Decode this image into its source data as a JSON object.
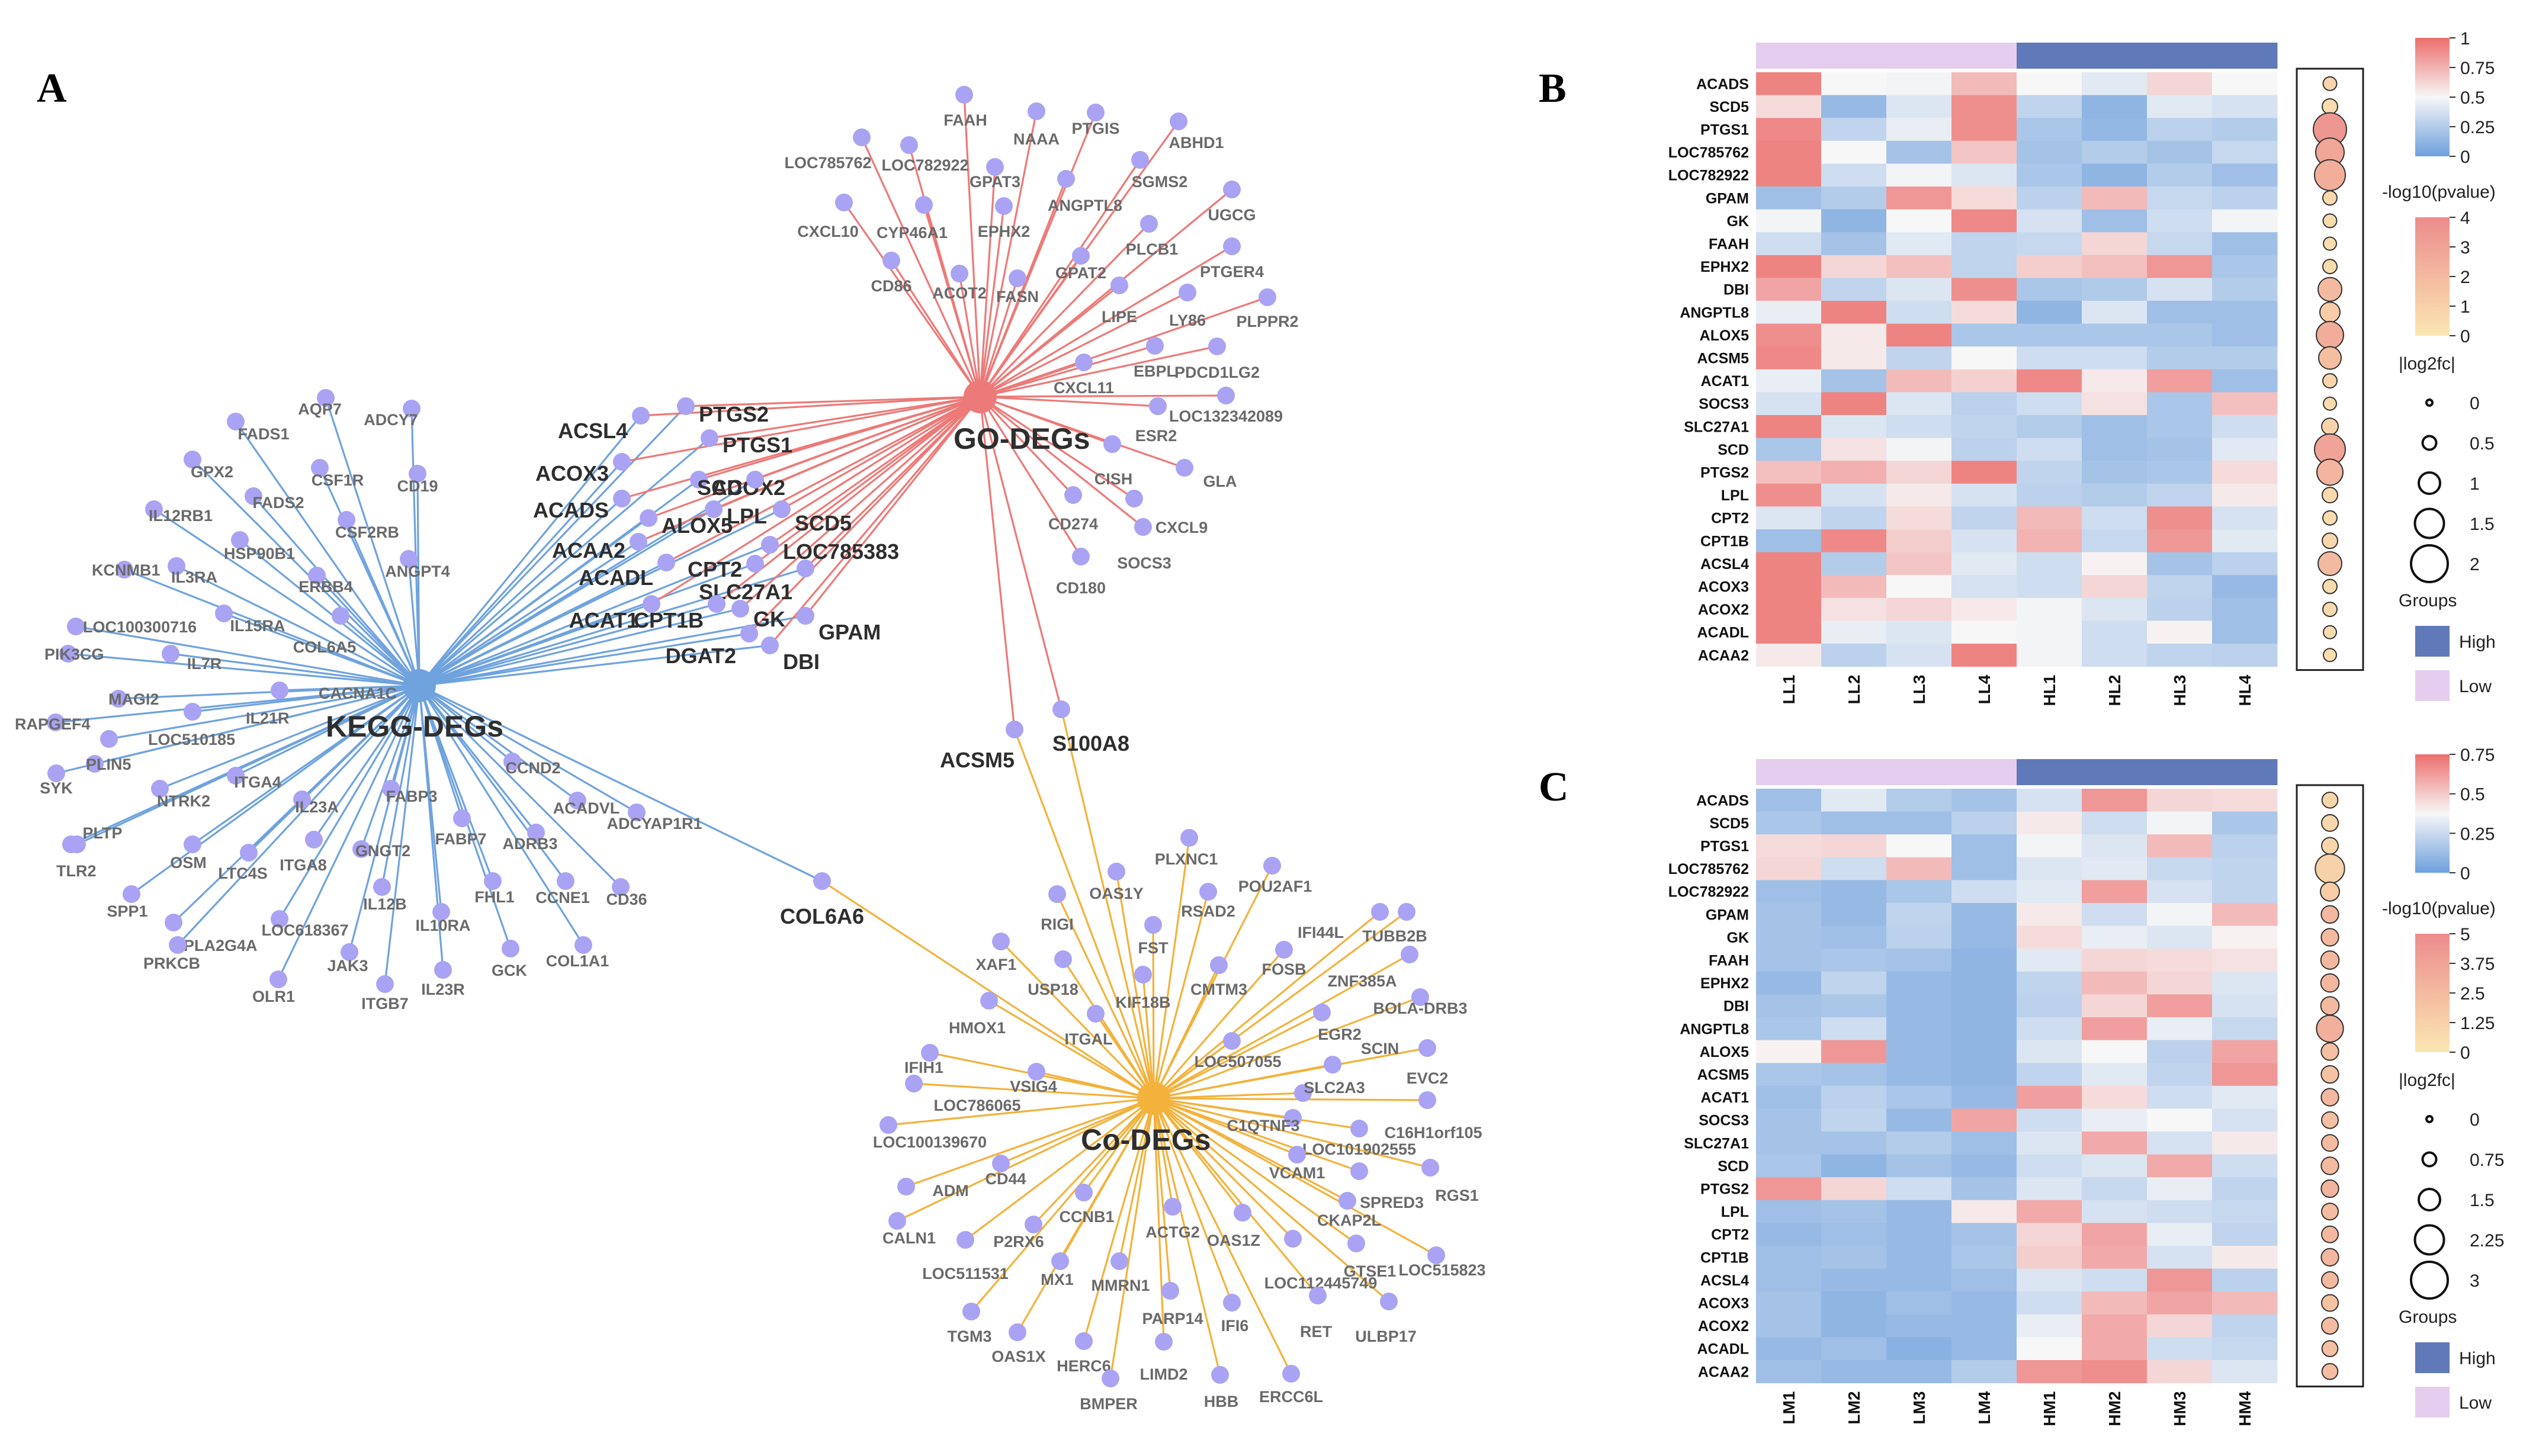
{
  "panels": {
    "a": "A",
    "b": "B",
    "c": "C"
  },
  "colors": {
    "kegg": "#6fa3de",
    "go": "#ec7a78",
    "co": "#f3b23c",
    "node": "#aaa3f3",
    "high": "#6079b8",
    "low": "#e4cdef",
    "heat_low": "#6ea0dd",
    "heat_mid": "#f7f7f7",
    "heat_high": "#ec6e6c",
    "pv_low": "#fbe7b3",
    "pv_high": "#ec8c8c"
  },
  "network": {
    "hubs": {
      "kegg": "KEGG-DEGs",
      "go": "GO-DEGs",
      "co": "Co-DEGs"
    },
    "kegg_genes": [
      "AQP7",
      "ADCY7",
      "FADS1",
      "GPX2",
      "CSF1R",
      "CD19",
      "FADS2",
      "IL12RB1",
      "CSF2RB",
      "HSP90B1",
      "KCNMB1",
      "ANGPT4",
      "IL3RA",
      "ERBB4",
      "LOC100300716",
      "IL15RA",
      "COL6A5",
      "PIK3CG",
      "IL7R",
      "MAGI2",
      "CACNA1C",
      "RAPGEF4",
      "IL21R",
      "LOC510185",
      "PLIN5",
      "SYK",
      "NTRK2",
      "ITGA4",
      "PLTP",
      "IL23A",
      "FABP3",
      "TLR2",
      "OSM",
      "LTC4S",
      "ITGA8",
      "GNGT2",
      "FABP7",
      "SPP1",
      "PLA2G4A",
      "IL12B",
      "PRKCB",
      "LOC618367",
      "FHL1",
      "IL10RA",
      "JAK3",
      "OLR1",
      "ITGB7",
      "IL23R",
      "GCK",
      "CCND2",
      "ACADVL",
      "ADCYAP1R1",
      "ADRB3",
      "CCNE1",
      "CD36",
      "COL1A1"
    ],
    "go_genes": [
      "FAAH",
      "NAAA",
      "PTGIS",
      "ABHD1",
      "LOC785762",
      "LOC782922",
      "GPAT3",
      "SGMS2",
      "ANGPTL8",
      "UGCG",
      "CXCL10",
      "CYP46A1",
      "EPHX2",
      "PLCB1",
      "CD86",
      "ACOT2",
      "FASN",
      "GPAT2",
      "PTGER4",
      "LIPE",
      "LY86",
      "PLPPR2",
      "EBPL",
      "PDCD1LG2",
      "CXCL11",
      "LOC132342089",
      "ESR2",
      "CISH",
      "GLA",
      "CD274",
      "CXCL9",
      "SOCS3",
      "CD180"
    ],
    "co_genes": [
      "PLXNC1",
      "OAS1Y",
      "POU2AF1",
      "RIGI",
      "RSAD2",
      "IFI44L",
      "FST",
      "TUBB2B",
      "XAF1",
      "USP18",
      "CMTM3",
      "FOSB",
      "ZNF385A",
      "KIF18B",
      "HMOX1",
      "ITGAL",
      "EGR2",
      "BOLA-DRB3",
      "LOC507055",
      "SCIN",
      "IFIH1",
      "VSIG4",
      "SLC2A3",
      "EVC2",
      "LOC786065",
      "C1QTNF3",
      "C16H1orf105",
      "LOC100139670",
      "LOC101902555",
      "RGS1",
      "CD44",
      "VCAM1",
      "SPRED3",
      "ADM",
      "CALN1",
      "CCNB1",
      "ACTG2",
      "CKAP2L",
      "P2RX6",
      "OAS1Z",
      "LOC511531",
      "LOC112445749",
      "GTSE1",
      "LOC515823",
      "MX1",
      "MMRN1",
      "TGM3",
      "PARP14",
      "IFI6",
      "RET",
      "ULBP17",
      "OAS1X",
      "HERC6",
      "LIMD2",
      "BMPER",
      "HBB",
      "ERCC6L"
    ],
    "shared_kegg_go": [
      "PTGS2",
      "ACSL4",
      "PTGS1",
      "ACOX3",
      "ACOX2",
      "SCD",
      "ACADS",
      "LPL",
      "ALOX5",
      "SCD5",
      "ACAA2",
      "LOC785383",
      "ACADL",
      "CPT2",
      "SLC27A1",
      "ACAT1",
      "CPT1B",
      "GK",
      "GPAM",
      "DGAT2",
      "DBI"
    ],
    "shared_go_co": [
      "ACSM5",
      "S100A8"
    ],
    "shared_kegg_co": [
      "COL6A6"
    ]
  },
  "heatmap_b": {
    "genes": [
      "ACADS",
      "SCD5",
      "PTGS1",
      "LOC785762",
      "LOC782922",
      "GPAM",
      "GK",
      "FAAH",
      "EPHX2",
      "DBI",
      "ANGPTL8",
      "ALOX5",
      "ACSM5",
      "ACAT1",
      "SOCS3",
      "SLC27A1",
      "SCD",
      "PTGS2",
      "LPL",
      "CPT2",
      "CPT1B",
      "ACSL4",
      "ACOX3",
      "ACOX2",
      "ACADL",
      "ACAA2"
    ],
    "samples": [
      "LL1",
      "LL2",
      "LL3",
      "LL4",
      "HL1",
      "HL2",
      "HL3",
      "HL4"
    ],
    "groups": [
      "low",
      "low",
      "low",
      "low",
      "high",
      "high",
      "high",
      "high"
    ],
    "values": [
      [
        0.92,
        0.5,
        0.48,
        0.72,
        0.5,
        0.42,
        0.62,
        0.5
      ],
      [
        0.6,
        0.15,
        0.4,
        0.88,
        0.3,
        0.12,
        0.42,
        0.38
      ],
      [
        0.9,
        0.3,
        0.45,
        0.88,
        0.22,
        0.14,
        0.28,
        0.25
      ],
      [
        0.92,
        0.5,
        0.2,
        0.68,
        0.2,
        0.25,
        0.2,
        0.32
      ],
      [
        0.92,
        0.35,
        0.48,
        0.4,
        0.22,
        0.12,
        0.25,
        0.18
      ],
      [
        0.18,
        0.25,
        0.85,
        0.6,
        0.28,
        0.72,
        0.32,
        0.28
      ],
      [
        0.48,
        0.12,
        0.5,
        0.9,
        0.38,
        0.18,
        0.35,
        0.48
      ],
      [
        0.35,
        0.2,
        0.42,
        0.3,
        0.32,
        0.62,
        0.32,
        0.18
      ],
      [
        0.92,
        0.62,
        0.7,
        0.3,
        0.65,
        0.7,
        0.85,
        0.22
      ],
      [
        0.8,
        0.3,
        0.4,
        0.88,
        0.22,
        0.24,
        0.38,
        0.25
      ],
      [
        0.45,
        0.92,
        0.35,
        0.6,
        0.12,
        0.4,
        0.18,
        0.18
      ],
      [
        0.88,
        0.55,
        0.92,
        0.22,
        0.22,
        0.22,
        0.22,
        0.18
      ],
      [
        0.9,
        0.55,
        0.3,
        0.5,
        0.35,
        0.35,
        0.25,
        0.25
      ],
      [
        0.45,
        0.2,
        0.72,
        0.64,
        0.9,
        0.55,
        0.82,
        0.18
      ],
      [
        0.38,
        0.92,
        0.4,
        0.28,
        0.35,
        0.58,
        0.22,
        0.7
      ],
      [
        0.92,
        0.4,
        0.35,
        0.3,
        0.25,
        0.18,
        0.22,
        0.35
      ],
      [
        0.22,
        0.58,
        0.48,
        0.28,
        0.35,
        0.18,
        0.2,
        0.42
      ],
      [
        0.7,
        0.76,
        0.62,
        0.92,
        0.3,
        0.2,
        0.22,
        0.6
      ],
      [
        0.88,
        0.38,
        0.55,
        0.38,
        0.28,
        0.25,
        0.3,
        0.55
      ],
      [
        0.4,
        0.3,
        0.6,
        0.3,
        0.72,
        0.35,
        0.88,
        0.38
      ],
      [
        0.18,
        0.9,
        0.65,
        0.38,
        0.75,
        0.32,
        0.85,
        0.42
      ],
      [
        0.92,
        0.25,
        0.68,
        0.42,
        0.35,
        0.52,
        0.2,
        0.28
      ],
      [
        0.92,
        0.72,
        0.5,
        0.38,
        0.35,
        0.62,
        0.3,
        0.15
      ],
      [
        0.92,
        0.58,
        0.62,
        0.55,
        0.48,
        0.4,
        0.28,
        0.18
      ],
      [
        0.92,
        0.45,
        0.4,
        0.5,
        0.48,
        0.35,
        0.52,
        0.18
      ],
      [
        0.55,
        0.28,
        0.38,
        0.92,
        0.48,
        0.35,
        0.3,
        0.28
      ]
    ],
    "pvalue": [
      0.8,
      0.5,
      3.5,
      2.8,
      2.5,
      0.6,
      0.5,
      0.4,
      0.5,
      2.0,
      1.2,
      2.6,
      1.8,
      0.8,
      0.5,
      0.9,
      3.0,
      2.2,
      0.6,
      0.5,
      0.7,
      2.0,
      0.5,
      0.6,
      0.5,
      0.4
    ],
    "log2fc": [
      0.35,
      0.5,
      2.0,
      1.6,
      1.8,
      0.4,
      0.35,
      0.3,
      0.4,
      1.2,
      0.9,
      1.5,
      1.1,
      0.4,
      0.3,
      0.6,
      1.8,
      1.4,
      0.5,
      0.4,
      0.5,
      1.2,
      0.4,
      0.4,
      0.3,
      0.3
    ],
    "legend": {
      "color_ticks": [
        "1",
        "0.75",
        "0.5",
        "0.25",
        "0"
      ],
      "pvalue_title": "-log10(pvalue)",
      "pvalue_ticks": [
        "4",
        "3",
        "2",
        "1",
        "0"
      ],
      "pvalue_max": 4,
      "fc_title": "|log2fc|",
      "fc_ticks": [
        "0",
        "0.5",
        "1",
        "1.5",
        "2"
      ],
      "fc_values": [
        0,
        0.5,
        1,
        1.5,
        2
      ],
      "fc_max": 2,
      "groups_title": "Groups",
      "high_label": "High",
      "low_label": "Low"
    }
  },
  "heatmap_c": {
    "genes": [
      "ACADS",
      "SCD5",
      "PTGS1",
      "LOC785762",
      "LOC782922",
      "GPAM",
      "GK",
      "FAAH",
      "EPHX2",
      "DBI",
      "ANGPTL8",
      "ALOX5",
      "ACSM5",
      "ACAT1",
      "SOCS3",
      "SLC27A1",
      "SCD",
      "PTGS2",
      "LPL",
      "CPT2",
      "CPT1B",
      "ACSL4",
      "ACOX3",
      "ACOX2",
      "ACADL",
      "ACAA2"
    ],
    "samples": [
      "LM1",
      "LM2",
      "LM3",
      "LM4",
      "HM1",
      "HM2",
      "HM3",
      "HM4"
    ],
    "groups": [
      "low",
      "low",
      "low",
      "low",
      "high",
      "high",
      "high",
      "high"
    ],
    "values": [
      [
        0.18,
        0.42,
        0.25,
        0.2,
        0.38,
        0.85,
        0.62,
        0.6
      ],
      [
        0.22,
        0.18,
        0.18,
        0.28,
        0.55,
        0.35,
        0.48,
        0.22
      ],
      [
        0.6,
        0.62,
        0.5,
        0.18,
        0.48,
        0.4,
        0.72,
        0.28
      ],
      [
        0.62,
        0.35,
        0.72,
        0.18,
        0.4,
        0.42,
        0.32,
        0.3
      ],
      [
        0.18,
        0.15,
        0.22,
        0.35,
        0.42,
        0.82,
        0.38,
        0.3
      ],
      [
        0.2,
        0.15,
        0.3,
        0.15,
        0.55,
        0.35,
        0.48,
        0.72
      ],
      [
        0.2,
        0.18,
        0.28,
        0.15,
        0.6,
        0.45,
        0.4,
        0.52
      ],
      [
        0.2,
        0.22,
        0.2,
        0.12,
        0.42,
        0.62,
        0.6,
        0.58
      ],
      [
        0.15,
        0.3,
        0.15,
        0.12,
        0.3,
        0.72,
        0.62,
        0.4
      ],
      [
        0.2,
        0.22,
        0.15,
        0.12,
        0.28,
        0.62,
        0.82,
        0.38
      ],
      [
        0.22,
        0.35,
        0.15,
        0.12,
        0.35,
        0.82,
        0.45,
        0.32
      ],
      [
        0.52,
        0.85,
        0.15,
        0.12,
        0.4,
        0.5,
        0.28,
        0.8
      ],
      [
        0.22,
        0.2,
        0.15,
        0.12,
        0.3,
        0.42,
        0.3,
        0.85
      ],
      [
        0.18,
        0.28,
        0.22,
        0.15,
        0.82,
        0.6,
        0.35,
        0.42
      ],
      [
        0.2,
        0.3,
        0.15,
        0.8,
        0.35,
        0.45,
        0.5,
        0.38
      ],
      [
        0.2,
        0.2,
        0.25,
        0.18,
        0.4,
        0.78,
        0.38,
        0.55
      ],
      [
        0.22,
        0.12,
        0.2,
        0.15,
        0.35,
        0.4,
        0.78,
        0.35
      ],
      [
        0.85,
        0.62,
        0.35,
        0.2,
        0.4,
        0.32,
        0.45,
        0.3
      ],
      [
        0.18,
        0.2,
        0.15,
        0.55,
        0.78,
        0.38,
        0.35,
        0.32
      ],
      [
        0.15,
        0.18,
        0.15,
        0.2,
        0.62,
        0.8,
        0.45,
        0.3
      ],
      [
        0.18,
        0.2,
        0.15,
        0.22,
        0.65,
        0.78,
        0.38,
        0.55
      ],
      [
        0.18,
        0.15,
        0.15,
        0.18,
        0.4,
        0.35,
        0.85,
        0.28
      ],
      [
        0.2,
        0.12,
        0.18,
        0.15,
        0.35,
        0.72,
        0.8,
        0.72
      ],
      [
        0.2,
        0.12,
        0.15,
        0.15,
        0.45,
        0.78,
        0.62,
        0.3
      ],
      [
        0.15,
        0.18,
        0.1,
        0.15,
        0.5,
        0.78,
        0.35,
        0.32
      ],
      [
        0.18,
        0.15,
        0.15,
        0.25,
        0.85,
        0.88,
        0.62,
        0.4
      ]
    ],
    "pvalue": [
      1.0,
      0.9,
      1.0,
      1.2,
      1.5,
      2.6,
      2.5,
      2.6,
      2.7,
      2.5,
      3.0,
      2.2,
      2.0,
      2.6,
      2.2,
      2.4,
      2.5,
      2.8,
      2.3,
      2.6,
      2.7,
      2.5,
      2.0,
      2.4,
      2.2,
      2.3
    ],
    "log2fc": [
      0.8,
      0.9,
      0.9,
      2.5,
      1.2,
      1.0,
      1.0,
      1.1,
      1.1,
      1.1,
      2.2,
      1.0,
      1.0,
      1.0,
      0.9,
      0.9,
      1.0,
      1.0,
      0.9,
      0.9,
      1.0,
      0.9,
      0.9,
      0.9,
      0.8,
      0.8
    ],
    "legend": {
      "color_ticks": [
        "0.75",
        "0.5",
        "0.25",
        "0"
      ],
      "pvalue_title": "-log10(pvalue)",
      "pvalue_ticks": [
        "5",
        "3.75",
        "2.5",
        "1.25",
        "0"
      ],
      "pvalue_max": 5,
      "fc_title": "|log2fc|",
      "fc_ticks": [
        "0",
        "0.75",
        "1.5",
        "2.25",
        "3"
      ],
      "fc_values": [
        0,
        0.75,
        1.5,
        2.25,
        3
      ],
      "fc_max": 3,
      "groups_title": "Groups",
      "high_label": "High",
      "low_label": "Low"
    }
  }
}
